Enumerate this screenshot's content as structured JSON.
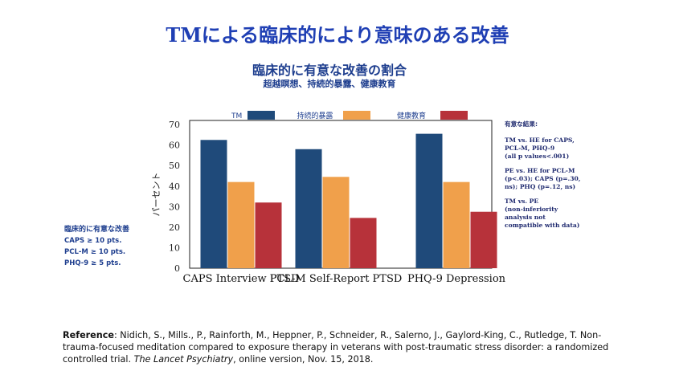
{
  "header": {
    "title": "TMによる臨床的により意味のある改善",
    "subtitle": "臨床的に有意な改善の割合",
    "subtitle_detail": "超越瞑想、持続的暴露、健康教育"
  },
  "colors": {
    "tm": "#1f4a7a",
    "pe": "#f0a04b",
    "he": "#b7323a"
  },
  "chart_data": {
    "type": "bar",
    "categories": [
      "CAPS Interview PTSD",
      "PCL-M Self-Report PTSD",
      "PHQ-9 Depression"
    ],
    "series": [
      {
        "name": "TM",
        "values": [
          62.5,
          58,
          65.5
        ]
      },
      {
        "name": "持続的暴露",
        "values": [
          42,
          44.5,
          42
        ]
      },
      {
        "name": "健康教育",
        "values": [
          32,
          24.5,
          27.5
        ]
      }
    ],
    "yticks": [
      0,
      10,
      20,
      30,
      40,
      50,
      60,
      70
    ],
    "ylabel": "パーセント",
    "ylim": [
      0,
      72
    ],
    "legend": "top"
  },
  "criteria": {
    "heading": "臨床的に有意な改善",
    "items": [
      "CAPS ≥ 10 pts.",
      "PCL-M ≥ 10 pts.",
      "PHQ-9 ≥ 5 pts."
    ]
  },
  "results": {
    "heading": "有意な結果:",
    "blocks": [
      "TM vs. HE for CAPS,\nPCL-M, PHQ-9\n(all p values<.001)",
      "PE vs. HE for PCL-M\n(p<.03); CAPS (p=.30,\nns);  PHQ (p=.12, ns)",
      "TM vs. PE\n(non-inferiority\nanalysis not\ncompatible with data)"
    ]
  },
  "reference": {
    "label": "Reference",
    "text": ": Nidich, S., Mills., P., Rainforth, M., Heppner, P., Schneider, R., Salerno, J., Gaylord-King, C., Rutledge, T.  Non-trauma-focused meditation compared to exposure therapy in veterans with post-traumatic stress disorder: a randomized controlled trial. ",
    "journal": "The Lancet Psychiatry",
    "tail": ", online version, Nov. 15, 2018."
  }
}
